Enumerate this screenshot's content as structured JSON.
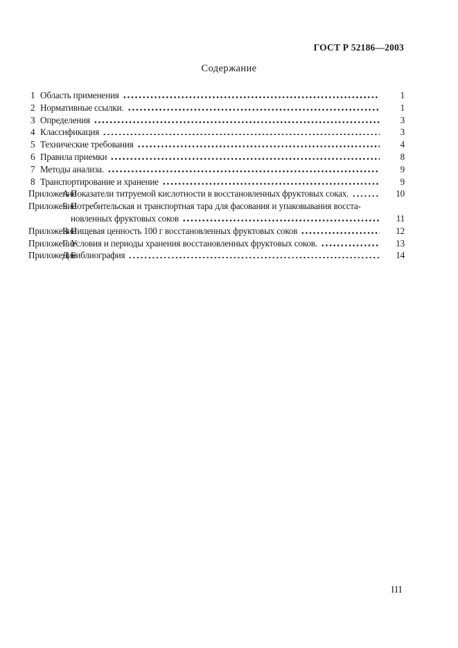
{
  "page": {
    "doc_number": "ГОСТ Р 52186—2003",
    "contents_title": "Содержание",
    "folio": "III",
    "colors": {
      "background": "#ffffff",
      "text": "#1b1b1b"
    }
  },
  "toc": {
    "entries": [
      {
        "num": "1",
        "title": "Область применения",
        "page": "1"
      },
      {
        "num": "2",
        "title": "Нормативные ссылки.",
        "page": "1"
      },
      {
        "num": "3",
        "title": "Определения",
        "page": "3"
      },
      {
        "num": "4",
        "title": "Классификация",
        "page": "3"
      },
      {
        "num": "5",
        "title": "Технические требования",
        "page": "4"
      },
      {
        "num": "6",
        "title": "Правила приемки",
        "page": "8"
      },
      {
        "num": "7",
        "title": "Методы анализа.",
        "page": "9"
      },
      {
        "num": "8",
        "title": "Транспортирование и хранение",
        "page": "9"
      },
      {
        "label": "Приложение",
        "letter": "А",
        "title": "Показатели титруемой кислотности в восстановленных фруктовых соках.",
        "page": "10"
      },
      {
        "label": "Приложение",
        "letter": "Б",
        "title_line1": "Потребительская и транспортная тара для фасования и упаковывания восста-",
        "title_line2": "новленных фруктовых соков",
        "page": "11"
      },
      {
        "label": "Приложение",
        "letter": "В",
        "title": "Пищевая ценность 100 г восстановленных фруктовых соков",
        "page": "12"
      },
      {
        "label": "Приложение",
        "letter": "Г",
        "title": "Условия и периоды хранения восстановленных фруктовых соков.",
        "page": "13"
      },
      {
        "label": "Приложение",
        "letter": "Д",
        "title": "Библиография",
        "page": "14"
      }
    ]
  }
}
